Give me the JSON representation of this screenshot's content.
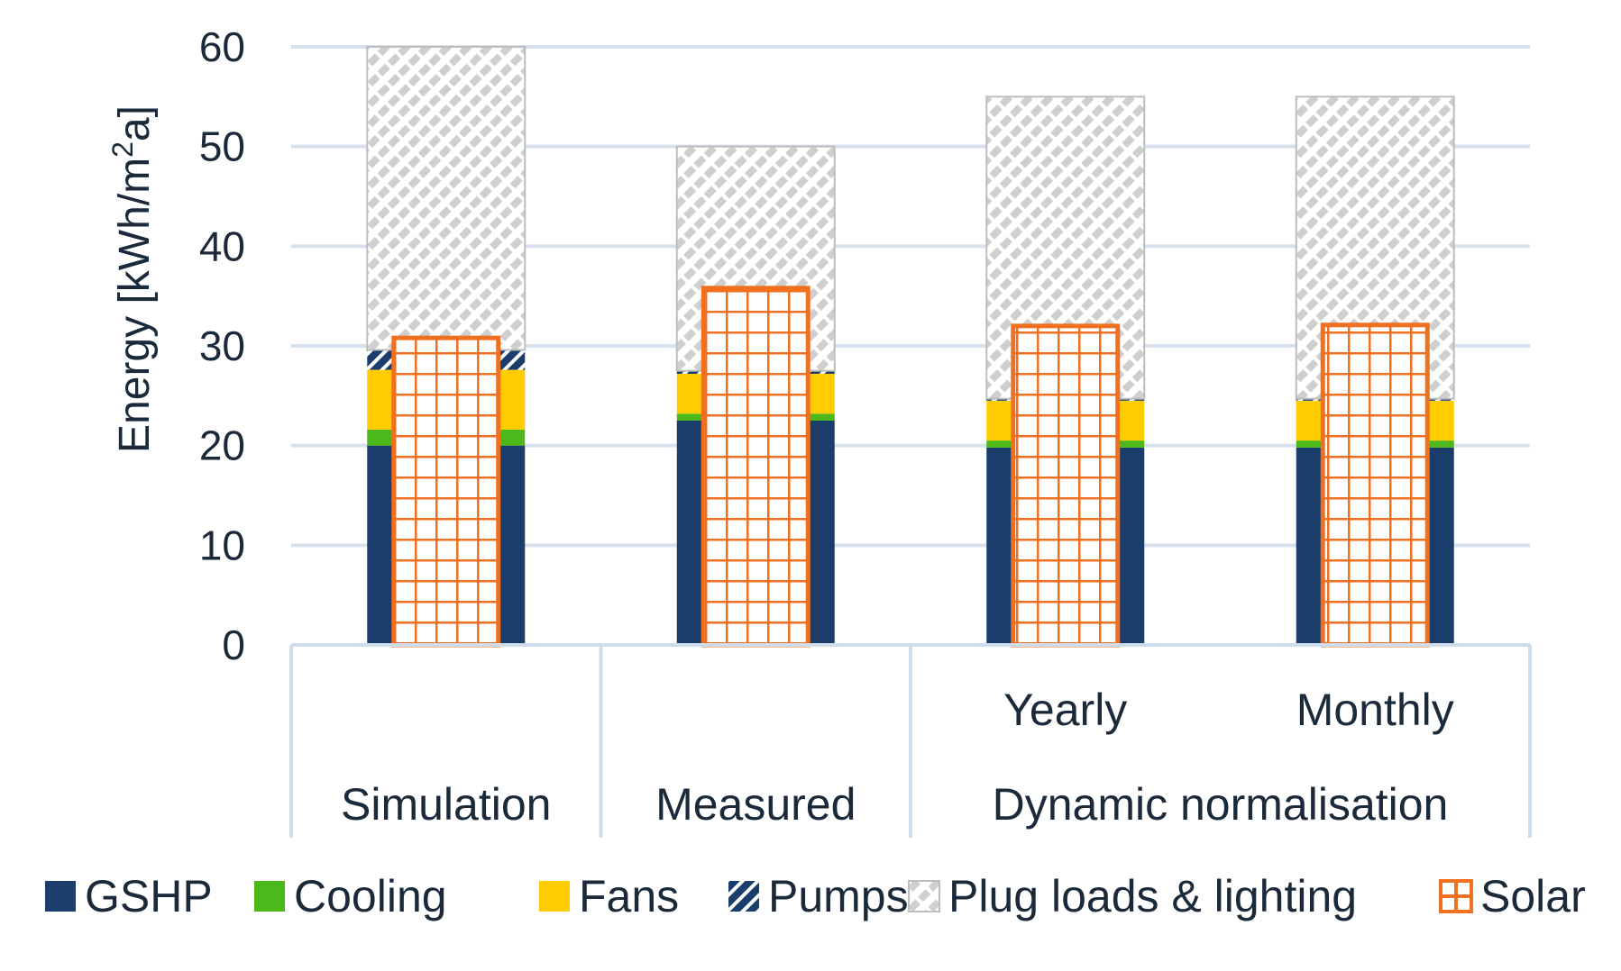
{
  "chart_data": {
    "type": "bar",
    "stacked": true,
    "title": "",
    "ylabel": "Energy [kWh/m",
    "ylabel_sup": "2",
    "ylabel_suffix": "a]",
    "ylim": [
      0,
      60
    ],
    "yticks": [
      0,
      10,
      20,
      30,
      40,
      50,
      60
    ],
    "grid": true,
    "legend_position": "bottom",
    "categories": [
      "Simulation",
      "Measured",
      "Yearly",
      "Monthly"
    ],
    "category_groups": [
      {
        "label": "Simulation",
        "members": [
          "Simulation"
        ]
      },
      {
        "label": "Measured",
        "members": [
          "Measured"
        ]
      },
      {
        "label": "Dynamic normalisation",
        "members": [
          "Yearly",
          "Monthly"
        ]
      }
    ],
    "subcategory_labels": [
      "",
      "",
      "Yearly",
      "Monthly"
    ],
    "series": [
      {
        "name": "GSHP",
        "values": [
          20.0,
          22.5,
          19.8,
          19.8
        ],
        "color": "#1a3d6b",
        "pattern": "solid"
      },
      {
        "name": "Cooling",
        "values": [
          1.6,
          0.7,
          0.7,
          0.7
        ],
        "color": "#4cb81a",
        "pattern": "solid"
      },
      {
        "name": "Fans",
        "values": [
          6.0,
          4.0,
          4.0,
          4.0
        ],
        "color": "#ffcc00",
        "pattern": "solid"
      },
      {
        "name": "Pumps",
        "values": [
          2.0,
          0.3,
          0.2,
          0.2
        ],
        "color": "#1a3d6b",
        "pattern": "diagonal"
      },
      {
        "name": "Plug loads & lighting",
        "values": [
          30.4,
          22.5,
          30.3,
          30.3
        ],
        "color": "#c8c8c8",
        "pattern": "hatched"
      }
    ],
    "overlay_series": {
      "name": "Solar",
      "values": [
        30.8,
        35.8,
        32.0,
        32.1
      ],
      "color": "#f07020",
      "pattern": "grid"
    }
  }
}
